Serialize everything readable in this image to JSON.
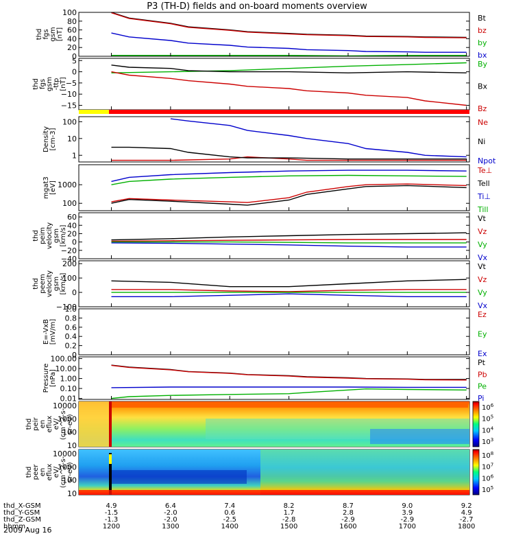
{
  "title": "P3 (TH-D) fields and on-board moments overview",
  "chart_data": [
    {
      "type": "line",
      "panel": "fgs_gsm_mag",
      "ylabel": [
        "thd",
        "fgs",
        "gsm",
        "[nT]"
      ],
      "ylim": [
        0,
        100
      ],
      "yticks": [
        0,
        20,
        40,
        60,
        80,
        100
      ],
      "grid": false,
      "legend_position": "right",
      "series": [
        {
          "name": "Bt",
          "color": "#000000",
          "x": [
            1200,
            1230,
            1300,
            1330,
            1400,
            1430,
            1500,
            1530,
            1600,
            1630,
            1700,
            1730,
            1800
          ],
          "values": [
            100,
            87,
            75,
            67,
            60,
            56,
            52,
            50,
            48,
            46,
            45,
            44,
            43
          ]
        },
        {
          "name": "bz",
          "color": "#cc0000",
          "x": [
            1200,
            1230,
            1300,
            1330,
            1400,
            1430,
            1500,
            1530,
            1600,
            1630,
            1700,
            1730,
            1800
          ],
          "values": [
            99,
            86,
            74,
            66,
            59,
            55,
            51,
            49,
            47,
            45,
            44,
            43,
            42
          ]
        },
        {
          "name": "by",
          "color": "#00b000",
          "x": [
            1200,
            1300,
            1400,
            1500,
            1600,
            1700,
            1800
          ],
          "values": [
            2,
            2,
            2,
            2,
            1,
            2,
            2
          ]
        },
        {
          "name": "bx",
          "color": "#0000cc",
          "x": [
            1200,
            1230,
            1300,
            1330,
            1400,
            1430,
            1500,
            1530,
            1600,
            1630,
            1700,
            1730,
            1800
          ],
          "values": [
            53,
            44,
            36,
            30,
            25,
            21,
            18,
            15,
            13,
            11,
            10,
            9,
            9
          ]
        }
      ]
    },
    {
      "type": "line",
      "panel": "fgs_gsm_components",
      "ylabel": [
        "thd",
        "fgs",
        "gsm",
        "-ttp",
        "[nT]"
      ],
      "ylim": [
        -17,
        6
      ],
      "yticks": [
        -15,
        -10,
        -5,
        0,
        5
      ],
      "grid": false,
      "series": [
        {
          "name": "By",
          "color": "#00b000",
          "x": [
            1200,
            1300,
            1400,
            1500,
            1600,
            1700,
            1800
          ],
          "values": [
            -0.5,
            0,
            0.5,
            1.5,
            2.5,
            3.2,
            4
          ]
        },
        {
          "name": "Bx",
          "color": "#000000",
          "x": [
            1200,
            1230,
            1300,
            1330,
            1400,
            1500,
            1600,
            1700,
            1800
          ],
          "values": [
            3,
            2,
            1.5,
            0.5,
            0,
            0,
            -0.5,
            0,
            -0.5
          ]
        },
        {
          "name": "Bz",
          "color": "#cc0000",
          "x": [
            1200,
            1230,
            1300,
            1330,
            1400,
            1430,
            1500,
            1530,
            1600,
            1630,
            1700,
            1730,
            1800
          ],
          "values": [
            0,
            -1.5,
            -3,
            -4,
            -5.5,
            -6.5,
            -7.5,
            -8.5,
            -9.5,
            -10.5,
            -11.5,
            -13,
            -15
          ]
        }
      ]
    },
    {
      "type": "line",
      "panel": "density",
      "yscale": "log",
      "ylabel": [
        "Density",
        "[cm-3]"
      ],
      "ylim": [
        0.4,
        200
      ],
      "yticks": [
        1,
        10,
        100
      ],
      "ytick_labels": [
        "1",
        "10",
        "100"
      ],
      "series": [
        {
          "name": "Ne",
          "color": "#cc0000",
          "x": [
            1200,
            1300,
            1400,
            1430,
            1500,
            1530,
            1600,
            1700,
            1800
          ],
          "values": [
            0.5,
            0.5,
            0.6,
            0.8,
            0.6,
            0.5,
            0.5,
            0.5,
            0.5
          ]
        },
        {
          "name": "Ni",
          "color": "#000000",
          "x": [
            1200,
            1230,
            1300,
            1330,
            1400,
            1430,
            1500,
            1600,
            1700,
            1800
          ],
          "values": [
            3,
            3,
            2.5,
            1.5,
            0.8,
            0.7,
            0.7,
            0.6,
            0.6,
            0.6
          ]
        },
        {
          "name": "Npot",
          "color": "#0000cc",
          "x": [
            1300,
            1330,
            1400,
            1430,
            1500,
            1530,
            1600,
            1630,
            1700,
            1730,
            1800
          ],
          "values": [
            150,
            110,
            60,
            30,
            15,
            10,
            5,
            2.5,
            1.5,
            1,
            0.8
          ]
        }
      ]
    },
    {
      "type": "line",
      "panel": "temperature",
      "yscale": "log",
      "ylabel": [
        "mgat3",
        "[eV]"
      ],
      "ylim": [
        40,
        12000
      ],
      "yticks": [
        100,
        1000
      ],
      "ytick_labels": [
        "100",
        "1000"
      ],
      "series": [
        {
          "name": "Te⊥",
          "color": "#cc0000",
          "x": [
            1200,
            1230,
            1300,
            1400,
            1430,
            1500,
            1530,
            1600,
            1630,
            1700,
            1800
          ],
          "values": [
            120,
            180,
            150,
            120,
            110,
            200,
            400,
            800,
            1000,
            1100,
            900
          ]
        },
        {
          "name": "Tell",
          "color": "#000000",
          "x": [
            1200,
            1230,
            1300,
            1400,
            1430,
            1500,
            1530,
            1600,
            1630,
            1700,
            1800
          ],
          "values": [
            100,
            160,
            130,
            90,
            80,
            150,
            300,
            600,
            800,
            900,
            700
          ]
        },
        {
          "name": "Ti⊥",
          "color": "#0000cc",
          "x": [
            1200,
            1230,
            1300,
            1400,
            1500,
            1600,
            1700,
            1800
          ],
          "values": [
            1500,
            2500,
            3500,
            4500,
            5500,
            6000,
            6000,
            5500
          ]
        },
        {
          "name": "Till",
          "color": "#00b000",
          "x": [
            1200,
            1230,
            1300,
            1400,
            1500,
            1600,
            1700,
            1800
          ],
          "values": [
            1000,
            1500,
            2000,
            2500,
            3000,
            3200,
            3000,
            2800
          ]
        }
      ]
    },
    {
      "type": "line",
      "panel": "peim_velocity",
      "ylabel": [
        "thd",
        "peim",
        "velocity",
        "gsm",
        "[km/s]"
      ],
      "ylim": [
        -40,
        70
      ],
      "yticks": [
        -40,
        -20,
        0,
        20,
        40,
        60
      ],
      "grid": false,
      "series": [
        {
          "name": "Vt",
          "color": "#000000",
          "x": [
            1200,
            1300,
            1400,
            1500,
            1600,
            1700,
            1800
          ],
          "values": [
            5,
            8,
            12,
            15,
            18,
            20,
            22
          ]
        },
        {
          "name": "Vz",
          "color": "#cc0000",
          "x": [
            1200,
            1300,
            1400,
            1500,
            1600,
            1700,
            1800
          ],
          "values": [
            2,
            3,
            4,
            5,
            6,
            6,
            6
          ]
        },
        {
          "name": "Vy",
          "color": "#00b000",
          "x": [
            1200,
            1300,
            1400,
            1500,
            1600,
            1700,
            1800
          ],
          "values": [
            0,
            0,
            0,
            -1,
            -2,
            -2,
            -2
          ]
        },
        {
          "name": "Vx",
          "color": "#0000cc",
          "x": [
            1200,
            1300,
            1400,
            1500,
            1600,
            1700,
            1800
          ],
          "values": [
            -2,
            -3,
            -5,
            -7,
            -10,
            -12,
            -12
          ]
        }
      ]
    },
    {
      "type": "line",
      "panel": "peem_velocity",
      "ylabel": [
        "thd",
        "peem",
        "velocity",
        "gsm",
        "[km/s]"
      ],
      "ylim": [
        -100,
        220
      ],
      "yticks": [
        -100,
        0,
        100,
        200
      ],
      "grid": false,
      "series": [
        {
          "name": "Vt",
          "color": "#000000",
          "x": [
            1200,
            1300,
            1400,
            1500,
            1600,
            1700,
            1800
          ],
          "values": [
            80,
            70,
            40,
            40,
            60,
            80,
            90
          ]
        },
        {
          "name": "Vz",
          "color": "#cc0000",
          "x": [
            1200,
            1300,
            1400,
            1500,
            1600,
            1700,
            1800
          ],
          "values": [
            20,
            20,
            10,
            5,
            15,
            20,
            20
          ]
        },
        {
          "name": "Vy",
          "color": "#00b000",
          "x": [
            1200,
            1300,
            1400,
            1500,
            1600,
            1700,
            1800
          ],
          "values": [
            0,
            0,
            0,
            0,
            0,
            0,
            0
          ]
        },
        {
          "name": "Vx",
          "color": "#0000cc",
          "x": [
            1200,
            1300,
            1400,
            1500,
            1600,
            1700,
            1800
          ],
          "values": [
            -30,
            -30,
            -20,
            -10,
            -20,
            -30,
            -30
          ]
        }
      ]
    },
    {
      "type": "line",
      "panel": "electric_field",
      "ylabel": [
        "E=-VxB",
        "[mV/m]"
      ],
      "ylim": [
        0,
        1
      ],
      "yticks": [
        0,
        0.2,
        0.4,
        0.6,
        0.8,
        1.0
      ],
      "ytick_labels": [
        "0",
        "0.2",
        "0.4",
        "0.6",
        "0.8",
        "1.0"
      ],
      "series": [
        {
          "name": "Ez",
          "color": "#cc0000",
          "values": []
        },
        {
          "name": "Ey",
          "color": "#00b000",
          "values": []
        },
        {
          "name": "Ex",
          "color": "#0000cc",
          "values": []
        }
      ]
    },
    {
      "type": "line",
      "panel": "pressure",
      "yscale": "log",
      "ylabel": [
        "Pressure",
        "[nPa]"
      ],
      "ylim": [
        0.008,
        150
      ],
      "yticks": [
        0.01,
        0.1,
        1,
        10,
        100
      ],
      "ytick_labels": [
        "0.01",
        "0.10",
        "1.00",
        "10.00",
        "100.00"
      ],
      "series": [
        {
          "name": "Pt",
          "color": "#000000",
          "x": [
            1200,
            1230,
            1300,
            1330,
            1400,
            1430,
            1500,
            1530,
            1600,
            1630,
            1700,
            1730,
            1800
          ],
          "values": [
            22,
            14,
            8,
            5,
            3.5,
            2.5,
            1.9,
            1.5,
            1.2,
            1,
            0.9,
            0.8,
            0.8
          ]
        },
        {
          "name": "Pb",
          "color": "#cc0000",
          "x": [
            1200,
            1230,
            1300,
            1330,
            1400,
            1430,
            1500,
            1530,
            1600,
            1630,
            1700,
            1730,
            1800
          ],
          "values": [
            21,
            13,
            7.5,
            4.8,
            3.3,
            2.4,
            1.8,
            1.4,
            1.1,
            0.95,
            0.85,
            0.75,
            0.7
          ]
        },
        {
          "name": "Pe",
          "color": "#00b000",
          "x": [
            1200,
            1230,
            1300,
            1400,
            1500,
            1530,
            1600,
            1630,
            1700,
            1800
          ],
          "values": [
            0.01,
            0.015,
            0.02,
            0.025,
            0.03,
            0.04,
            0.07,
            0.09,
            0.08,
            0.07
          ]
        },
        {
          "name": "Pi",
          "color": "#0000cc",
          "x": [
            1200,
            1300,
            1400,
            1500,
            1600,
            1700,
            1800
          ],
          "values": [
            0.12,
            0.14,
            0.14,
            0.14,
            0.14,
            0.13,
            0.13
          ]
        }
      ]
    },
    {
      "type": "heatmap",
      "panel": "peir_spectrogram",
      "yscale": "log",
      "ylabel": [
        "thd",
        "peir",
        "en",
        "eflux",
        "eV/",
        "(cm^2-s-",
        "sr-eV)"
      ],
      "ylim": [
        8,
        20000
      ],
      "yticks": [
        10,
        100,
        1000,
        10000
      ],
      "ytick_labels": [
        "10",
        "100",
        "1000",
        "10000"
      ],
      "colorbar": {
        "scale": "log",
        "ticks_exp": [
          3,
          4,
          5,
          6
        ],
        "tick_labels": [
          "10^3",
          "10^4",
          "10^5",
          "10^6"
        ]
      }
    },
    {
      "type": "heatmap",
      "panel": "peer_spectrogram",
      "yscale": "log",
      "ylabel": [
        "thd",
        "peer",
        "en",
        "eflux",
        "eV/",
        "(cm^2-s-",
        "sr-eV)"
      ],
      "ylim": [
        8,
        20000
      ],
      "yticks": [
        10,
        100,
        1000,
        10000
      ],
      "ytick_labels": [
        "10",
        "100",
        "1000",
        "10000"
      ],
      "colorbar": {
        "scale": "log",
        "ticks_exp": [
          5,
          6,
          7,
          8
        ],
        "tick_labels": [
          "10^5",
          "10^6",
          "10^7",
          "10^8"
        ]
      }
    }
  ],
  "x_axis": {
    "range": [
      1145,
      1805
    ],
    "ticks": [
      1200,
      1300,
      1400,
      1500,
      1600,
      1700,
      1800
    ],
    "rows": [
      {
        "label": "thd_X-GSM",
        "values": [
          "4.9",
          "6.4",
          "7.4",
          "8.2",
          "8.7",
          "9.0",
          "9.2"
        ]
      },
      {
        "label": "thd_Y-GSM",
        "values": [
          "-1.5",
          "-2.0",
          "0.6",
          "1.7",
          "2.8",
          "3.9",
          "4.9"
        ]
      },
      {
        "label": "thd_Z-GSM",
        "values": [
          "-1.3",
          "-2.0",
          "-2.5",
          "-2.8",
          "-2.9",
          "-2.9",
          "-2.7"
        ]
      },
      {
        "label": "hhmm",
        "values": [
          "1200",
          "1300",
          "1400",
          "1500",
          "1600",
          "1700",
          "1800"
        ]
      }
    ],
    "date": "2009 Aug 16"
  }
}
